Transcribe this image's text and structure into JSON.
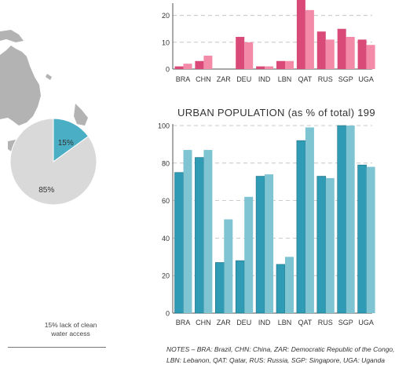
{
  "pie": {
    "values": [
      15,
      85
    ],
    "labels": [
      "15%",
      "85%"
    ],
    "caption_line1": "15% lack of clean",
    "caption_line2": "water access",
    "colors": [
      "#4aaec4",
      "#d9d9d9"
    ]
  },
  "notes": {
    "line1": "NOTES – BRA: Brazil, CHN: China, ZAR: Democratic Republic of the Congo,",
    "line2": "LBN: Lebanon, QAT: Qatar, RUS: Russia, SGP: Singapore, UGA: Uganda"
  },
  "chart_data": [
    {
      "type": "bar",
      "title": "",
      "categories": [
        "BRA",
        "CHN",
        "ZAR",
        "DEU",
        "IND",
        "LBN",
        "QAT",
        "RUS",
        "SGP",
        "UGA"
      ],
      "series": [
        {
          "values": [
            1,
            3,
            0,
            12,
            1,
            3,
            28,
            14,
            15,
            11
          ],
          "color": "#d94a78"
        },
        {
          "values": [
            2,
            5,
            0,
            10,
            1,
            3,
            22,
            11,
            12,
            9
          ],
          "color": "#f28aa8"
        }
      ],
      "yticks": [
        0,
        10,
        20
      ],
      "ylim": [
        0,
        24
      ]
    },
    {
      "type": "bar",
      "title": "URBAN POPULATION (as % of total) 199",
      "categories": [
        "BRA",
        "CHN",
        "ZAR",
        "DEU",
        "IND",
        "LBN",
        "QAT",
        "RUS",
        "SGP",
        "UGA"
      ],
      "series": [
        {
          "values": [
            75,
            83,
            27,
            28,
            73,
            26,
            92,
            73,
            100,
            79
          ],
          "color": "#2f9bb4"
        },
        {
          "values": [
            87,
            87,
            50,
            62,
            74,
            30,
            99,
            72,
            100,
            78
          ],
          "color": "#7ec4d2"
        }
      ],
      "yticks": [
        0,
        20,
        40,
        60,
        80,
        100
      ],
      "ylim": [
        0,
        100
      ]
    }
  ]
}
